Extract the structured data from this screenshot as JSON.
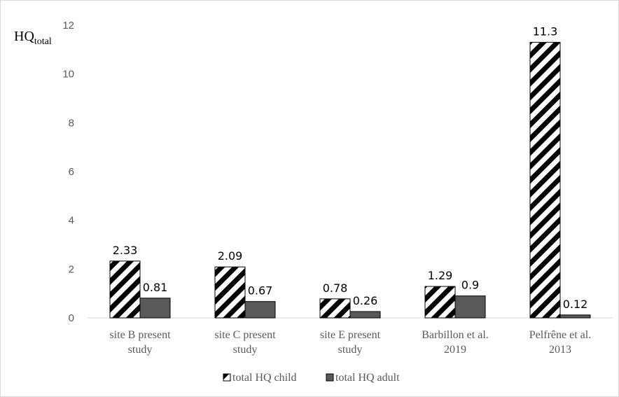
{
  "chart_data": {
    "type": "bar",
    "title": "",
    "ylabel": {
      "main": "HQ",
      "sub": "total"
    },
    "xlabel": "",
    "ylim": [
      0,
      12
    ],
    "yticks": [
      0,
      2,
      4,
      6,
      8,
      10,
      12
    ],
    "grid": false,
    "legend_position": "bottom",
    "categories": [
      [
        "site B present",
        "study"
      ],
      [
        "site C present",
        "study"
      ],
      [
        "site E present",
        "study"
      ],
      [
        "Barbillon et al.",
        "2019"
      ],
      [
        "Pelfrêne et al.",
        "2013"
      ]
    ],
    "series": [
      {
        "name": "total HQ child",
        "values": [
          2.33,
          2.09,
          0.78,
          1.29,
          11.3
        ],
        "labels": [
          "2.33",
          "2.09",
          "0.78",
          "1.29",
          "11.3"
        ],
        "pattern": "diagonal-hatch",
        "color": "#000000"
      },
      {
        "name": "total HQ adult",
        "values": [
          0.81,
          0.67,
          0.26,
          0.9,
          0.12
        ],
        "labels": [
          "0.81",
          "0.67",
          "0.26",
          "0.9",
          "0.12"
        ],
        "pattern": "solid",
        "color": "#595959"
      }
    ],
    "colors": {
      "axis": "#d9d9d9",
      "text": "#595959",
      "bar_outline": "#000000"
    }
  }
}
